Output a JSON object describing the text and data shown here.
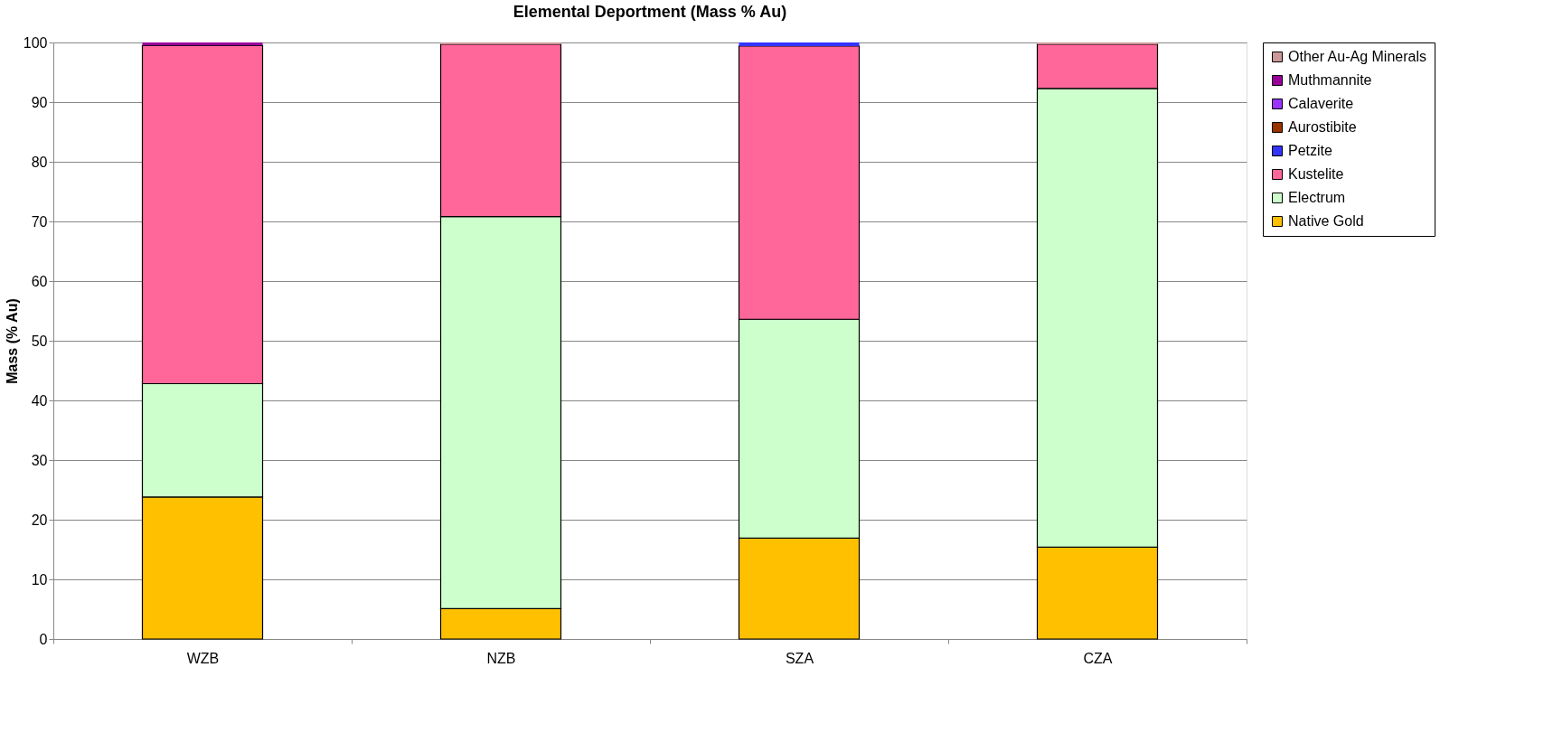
{
  "chart_data": {
    "type": "bar",
    "stacked": true,
    "title": "Elemental Deportment (Mass % Au)",
    "ylabel": "Mass (% Au)",
    "categories": [
      "WZB",
      "NZB",
      "SZA",
      "CZA"
    ],
    "series": [
      {
        "name": "Native Gold",
        "color": "#ffc000",
        "values": [
          23.8,
          5.1,
          16.9,
          15.4
        ]
      },
      {
        "name": "Electrum",
        "color": "#ccffcc",
        "values": [
          19.0,
          65.7,
          36.7,
          76.9
        ]
      },
      {
        "name": "Kustelite",
        "color": "#ff6699",
        "values": [
          56.7,
          28.9,
          45.8,
          7.4
        ]
      },
      {
        "name": "Petzite",
        "color": "#3333ff",
        "values": [
          0,
          0,
          0.6,
          0
        ]
      },
      {
        "name": "Aurostibite",
        "color": "#993300",
        "values": [
          0,
          0,
          0,
          0
        ]
      },
      {
        "name": "Calaverite",
        "color": "#9933ff",
        "values": [
          0,
          0,
          0,
          0
        ]
      },
      {
        "name": "Muthmannite",
        "color": "#990099",
        "values": [
          0.5,
          0,
          0,
          0
        ]
      },
      {
        "name": "Other Au-Ag Minerals",
        "color": "#cc9999",
        "values": [
          0,
          0.3,
          0,
          0.3
        ]
      }
    ],
    "ylim": [
      0,
      100
    ],
    "yticks": [
      0,
      10,
      20,
      30,
      40,
      50,
      60,
      70,
      80,
      90,
      100
    ],
    "grid": "y",
    "legend": "right"
  }
}
